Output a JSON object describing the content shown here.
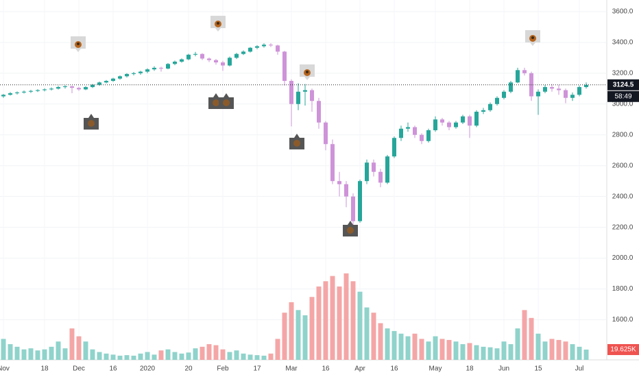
{
  "chart_data": {
    "type": "candlestick",
    "categories": [
      "Nov",
      null,
      null,
      null,
      null,
      null,
      "18",
      null,
      null,
      null,
      null,
      "Dec",
      null,
      null,
      null,
      null,
      "16",
      null,
      null,
      null,
      null,
      "2020",
      null,
      null,
      null,
      null,
      null,
      "20",
      null,
      null,
      null,
      null,
      "Feb",
      null,
      null,
      null,
      null,
      "17",
      null,
      null,
      null,
      null,
      "Mar",
      null,
      null,
      null,
      null,
      "16",
      null,
      null,
      null,
      null,
      "Apr",
      null,
      null,
      null,
      null,
      "16",
      null,
      null,
      null,
      null,
      null,
      "May",
      null,
      null,
      null,
      null,
      "18",
      null,
      null,
      null,
      null,
      "Jun",
      null,
      null,
      null,
      null,
      "15",
      null,
      null,
      null,
      null,
      null,
      "Jul",
      null
    ],
    "open": [
      3050,
      3060,
      3070,
      3075,
      3080,
      3085,
      3090,
      3095,
      3100,
      3110,
      3115,
      3105,
      3095,
      3110,
      3125,
      3140,
      3150,
      3165,
      3180,
      3195,
      3200,
      3210,
      3225,
      3235,
      3230,
      3260,
      3275,
      3290,
      3320,
      3325,
      3295,
      3285,
      3270,
      3250,
      3300,
      3325,
      3340,
      3365,
      3375,
      3385,
      3380,
      3340,
      3150,
      3000,
      3080,
      3090,
      3020,
      2880,
      2740,
      2500,
      2480,
      2400,
      2240,
      2500,
      2620,
      2560,
      2490,
      2660,
      2780,
      2840,
      2850,
      2800,
      2760,
      2830,
      2900,
      2880,
      2850,
      2880,
      2920,
      2860,
      2950,
      2960,
      3000,
      3040,
      3080,
      3140,
      3220,
      3200,
      3050,
      3080,
      3110,
      3100,
      3090,
      3040,
      3060,
      3110
    ],
    "high": [
      3065,
      3078,
      3082,
      3088,
      3092,
      3096,
      3102,
      3108,
      3118,
      3122,
      3120,
      3112,
      3116,
      3130,
      3146,
      3156,
      3170,
      3186,
      3200,
      3208,
      3216,
      3232,
      3245,
      3242,
      3266,
      3282,
      3296,
      3326,
      3338,
      3330,
      3302,
      3292,
      3280,
      3308,
      3332,
      3348,
      3370,
      3382,
      3394,
      3395,
      3385,
      3345,
      3160,
      3135,
      3130,
      3100,
      3040,
      2890,
      2770,
      2560,
      2500,
      2420,
      2510,
      2640,
      2640,
      2580,
      2670,
      2790,
      2860,
      2880,
      2860,
      2810,
      2840,
      2920,
      2910,
      2890,
      2890,
      2930,
      2930,
      2960,
      2975,
      3010,
      3050,
      3090,
      3150,
      3235,
      3235,
      3210,
      3095,
      3125,
      3130,
      3125,
      3100,
      3075,
      3120,
      3140
    ],
    "low": [
      3040,
      3055,
      3062,
      3068,
      3072,
      3078,
      3082,
      3088,
      3094,
      3100,
      3070,
      3085,
      3090,
      3104,
      3118,
      3134,
      3144,
      3158,
      3172,
      3186,
      3190,
      3200,
      3215,
      3210,
      3225,
      3252,
      3268,
      3284,
      3310,
      3285,
      3272,
      3255,
      3215,
      3244,
      3292,
      3318,
      3334,
      3356,
      3366,
      3370,
      3320,
      3120,
      2855,
      2960,
      2990,
      2950,
      2840,
      2700,
      2480,
      2400,
      2330,
      2190,
      2230,
      2480,
      2530,
      2460,
      2480,
      2650,
      2760,
      2820,
      2780,
      2740,
      2750,
      2820,
      2860,
      2830,
      2840,
      2870,
      2780,
      2850,
      2935,
      2950,
      2990,
      3030,
      3070,
      3135,
      3185,
      3020,
      2930,
      3070,
      3080,
      3060,
      3005,
      3020,
      3050,
      3100
    ],
    "close": [
      3060,
      3070,
      3075,
      3080,
      3085,
      3090,
      3095,
      3100,
      3110,
      3115,
      3105,
      3095,
      3110,
      3125,
      3140,
      3150,
      3165,
      3180,
      3195,
      3200,
      3210,
      3225,
      3235,
      3230,
      3260,
      3275,
      3290,
      3320,
      3325,
      3295,
      3285,
      3270,
      3250,
      3300,
      3325,
      3340,
      3365,
      3375,
      3385,
      3380,
      3340,
      3150,
      3000,
      3080,
      3090,
      3020,
      2880,
      2740,
      2500,
      2480,
      2400,
      2240,
      2500,
      2620,
      2560,
      2490,
      2660,
      2780,
      2840,
      2850,
      2800,
      2760,
      2830,
      2900,
      2880,
      2850,
      2880,
      2920,
      2860,
      2950,
      2960,
      3000,
      3040,
      3080,
      3140,
      3220,
      3200,
      3050,
      3080,
      3110,
      3100,
      3090,
      3040,
      3060,
      3110,
      3124.5
    ],
    "up_color": "#26a69a",
    "down_color": "#ce93d8",
    "ylim": [
      1340,
      3675
    ],
    "yticks": [
      {
        "value": 1600,
        "label": "1600.0"
      },
      {
        "value": 1800,
        "label": "1800.0"
      },
      {
        "value": 2000,
        "label": "2000.0"
      },
      {
        "value": 2200,
        "label": "2200.0"
      },
      {
        "value": 2400,
        "label": "2400.0"
      },
      {
        "value": 2600,
        "label": "2600.0"
      },
      {
        "value": 2800,
        "label": "2800.0"
      },
      {
        "value": 3000,
        "label": "3000.0"
      },
      {
        "value": 3200,
        "label": "3200.0"
      },
      {
        "value": 3400,
        "label": "3400.0"
      },
      {
        "value": 3600,
        "label": "3600.0"
      }
    ],
    "grid": true,
    "last_price": 3124.5,
    "countdown": "58:49",
    "volume": {
      "values": [
        40000,
        30000,
        25000,
        20000,
        22000,
        18000,
        20000,
        25000,
        35000,
        22000,
        60000,
        45000,
        35000,
        20000,
        15000,
        12000,
        10000,
        8000,
        9000,
        8000,
        12000,
        15000,
        10000,
        18000,
        20000,
        15000,
        12000,
        14000,
        22000,
        25000,
        30000,
        28000,
        20000,
        15000,
        18000,
        12000,
        10000,
        9000,
        8000,
        12000,
        40000,
        90000,
        110000,
        95000,
        85000,
        120000,
        140000,
        150000,
        160000,
        140000,
        165000,
        150000,
        130000,
        100000,
        90000,
        70000,
        60000,
        55000,
        50000,
        45000,
        50000,
        40000,
        35000,
        45000,
        40000,
        38000,
        35000,
        30000,
        32000,
        28000,
        25000,
        24000,
        22000,
        35000,
        30000,
        60000,
        95000,
        80000,
        50000,
        35000,
        40000,
        38000,
        35000,
        30000,
        25000,
        19625
      ],
      "lim": [
        0,
        170000
      ],
      "last_label": "19.625K",
      "up_color": "#8fd3cb",
      "down_color": "#f4a6a6",
      "label_color": "#ef5350"
    }
  }
}
